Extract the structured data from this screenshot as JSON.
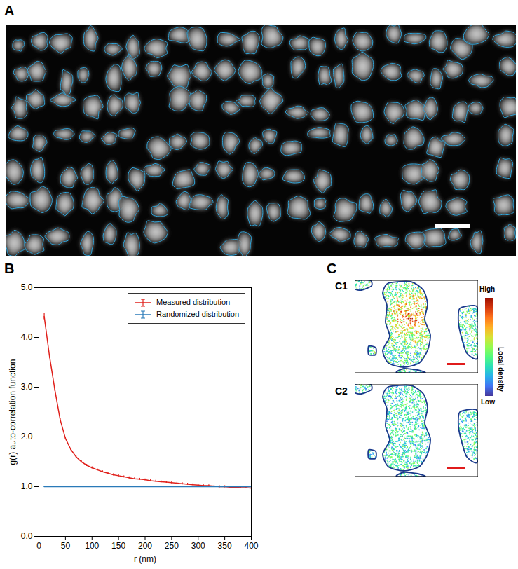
{
  "chart_data": {
    "type": "line",
    "x_label": "r (nm)",
    "y_label": "g(r) auto-correlation function",
    "x": [
      10,
      20,
      30,
      40,
      50,
      60,
      70,
      80,
      90,
      100,
      110,
      120,
      130,
      140,
      150,
      160,
      170,
      180,
      190,
      200,
      210,
      220,
      230,
      240,
      250,
      260,
      270,
      280,
      290,
      300,
      310,
      320,
      330,
      340,
      350,
      360,
      370,
      380,
      390,
      400
    ],
    "xlim": [
      0,
      400
    ],
    "xticks": [
      0,
      50,
      100,
      150,
      200,
      250,
      300,
      350,
      400
    ],
    "ylim": [
      0,
      5
    ],
    "yticks": [
      0,
      1,
      2,
      3,
      4,
      5
    ],
    "legend": "top-right",
    "series": [
      {
        "name": "Measured distribution",
        "color": "#e0201b",
        "values": [
          4.42,
          3.62,
          2.95,
          2.35,
          1.97,
          1.75,
          1.6,
          1.5,
          1.43,
          1.38,
          1.34,
          1.3,
          1.27,
          1.24,
          1.22,
          1.2,
          1.18,
          1.16,
          1.15,
          1.14,
          1.12,
          1.11,
          1.1,
          1.09,
          1.08,
          1.07,
          1.06,
          1.05,
          1.04,
          1.03,
          1.02,
          1.02,
          1.01,
          1.0,
          1.0,
          0.99,
          0.99,
          0.98,
          0.98,
          0.97
        ],
        "errors": [
          0.06,
          0.04,
          0.03,
          0.03,
          0.02,
          0.02,
          0.02,
          0.02,
          0.02,
          0.02,
          0.02,
          0.02,
          0.02,
          0.02,
          0.02,
          0.02,
          0.02,
          0.02,
          0.02,
          0.02,
          0.02,
          0.02,
          0.02,
          0.02,
          0.02,
          0.02,
          0.02,
          0.02,
          0.02,
          0.02,
          0.02,
          0.02,
          0.02,
          0.02,
          0.02,
          0.02,
          0.02,
          0.02,
          0.02,
          0.02
        ]
      },
      {
        "name": "Randomized distribution",
        "color": "#2a7ab8",
        "values": [
          1,
          1,
          1,
          1,
          1,
          1,
          1,
          1,
          1,
          1,
          1,
          1,
          1,
          1,
          1,
          1,
          1,
          1,
          1,
          1,
          1,
          1,
          1,
          1,
          1,
          1,
          1,
          1,
          1,
          1,
          1,
          1,
          1,
          1,
          1,
          1,
          1,
          1,
          1,
          1
        ],
        "errors": [
          0.01,
          0.01,
          0.01,
          0.01,
          0.01,
          0.01,
          0.01,
          0.01,
          0.01,
          0.01,
          0.01,
          0.01,
          0.01,
          0.01,
          0.01,
          0.01,
          0.01,
          0.01,
          0.01,
          0.01,
          0.01,
          0.01,
          0.01,
          0.01,
          0.01,
          0.01,
          0.01,
          0.01,
          0.01,
          0.01,
          0.01,
          0.01,
          0.01,
          0.01,
          0.01,
          0.01,
          0.01,
          0.01,
          0.01,
          0.01
        ]
      }
    ]
  },
  "panel_labels": {
    "image": "A",
    "chart": "B",
    "density": "C",
    "density_top": "C1",
    "density_bottom": "C2"
  },
  "colorbar": {
    "high": "High",
    "low": "Low",
    "title": "Local density"
  }
}
